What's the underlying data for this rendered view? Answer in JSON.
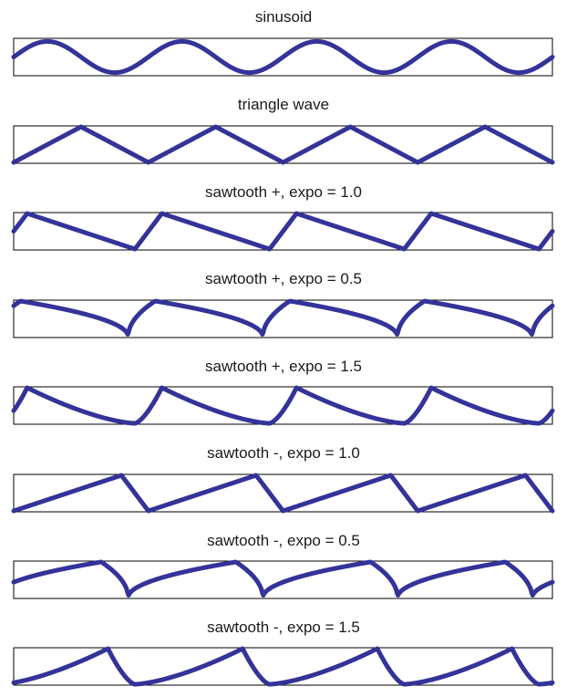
{
  "figure": {
    "line_color": "#333399",
    "frame_color": "#000000"
  },
  "chart_data": [
    {
      "type": "line",
      "title": "sinusoid",
      "waveform": "sinusoid",
      "cycles": 4,
      "direction": "",
      "expo": null,
      "ylim": [
        -1.2,
        1.2
      ],
      "grid": false
    },
    {
      "type": "line",
      "title": "triangle wave",
      "waveform": "triangle",
      "cycles": 4,
      "direction": "",
      "expo": null,
      "ylim": [
        -1.05,
        1.05
      ],
      "grid": false
    },
    {
      "type": "line",
      "title": "sawtooth +, expo = 1.0",
      "waveform": "sawtooth",
      "cycles": 4,
      "direction": "+",
      "expo": 1.0,
      "ylim": [
        -1.05,
        1.05
      ],
      "grid": false
    },
    {
      "type": "line",
      "title": "sawtooth +, expo = 0.5",
      "waveform": "sawtooth",
      "cycles": 4,
      "direction": "+",
      "expo": 0.5,
      "ylim": [
        -1.05,
        1.05
      ],
      "grid": false
    },
    {
      "type": "line",
      "title": "sawtooth +, expo = 1.5",
      "waveform": "sawtooth",
      "cycles": 4,
      "direction": "+",
      "expo": 1.5,
      "ylim": [
        -1.05,
        1.05
      ],
      "grid": false
    },
    {
      "type": "line",
      "title": "sawtooth -, expo = 1.0",
      "waveform": "sawtooth",
      "cycles": 4,
      "direction": "-",
      "expo": 1.0,
      "ylim": [
        -1.05,
        1.05
      ],
      "grid": false
    },
    {
      "type": "line",
      "title": "sawtooth -, expo = 0.5",
      "waveform": "sawtooth",
      "cycles": 4,
      "direction": "-",
      "expo": 0.5,
      "ylim": [
        -1.05,
        1.05
      ],
      "grid": false
    },
    {
      "type": "line",
      "title": "sawtooth -, expo = 1.5",
      "waveform": "sawtooth",
      "cycles": 4,
      "direction": "-",
      "expo": 1.5,
      "ylim": [
        -1.05,
        1.05
      ],
      "grid": false
    }
  ]
}
